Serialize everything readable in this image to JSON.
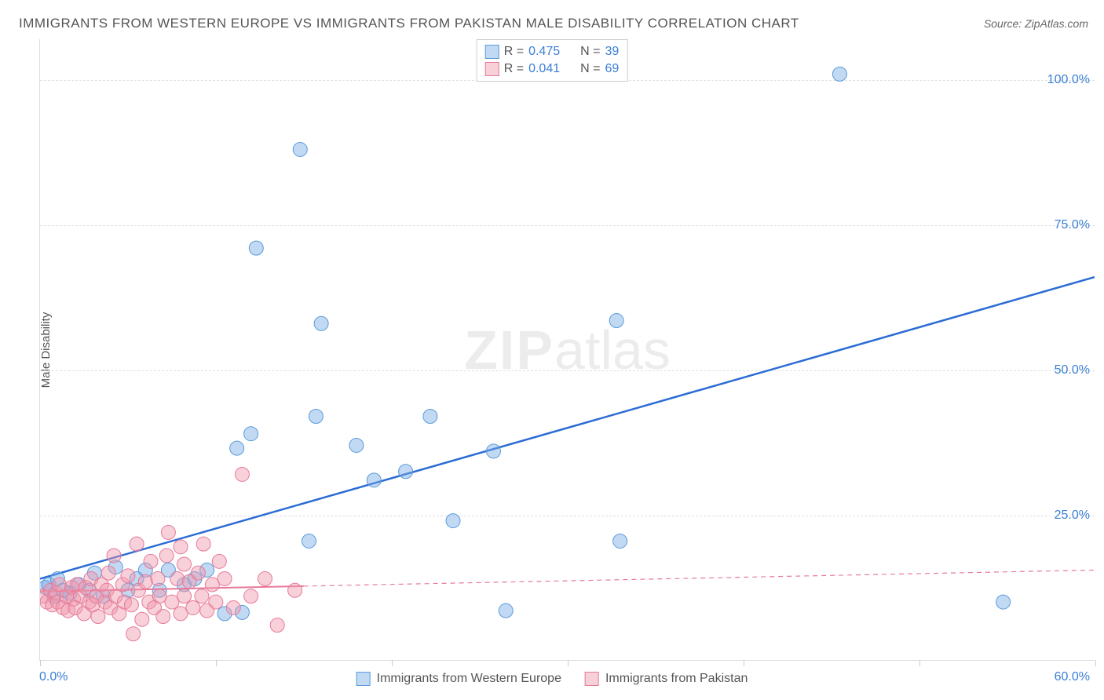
{
  "title": "IMMIGRANTS FROM WESTERN EUROPE VS IMMIGRANTS FROM PAKISTAN MALE DISABILITY CORRELATION CHART",
  "source_label": "Source: ZipAtlas.com",
  "watermark_zip": "ZIP",
  "watermark_atlas": "atlas",
  "ylabel": "Male Disability",
  "chart": {
    "type": "scatter",
    "xlim": [
      0,
      60
    ],
    "ylim": [
      0,
      107
    ],
    "x_min_label": "0.0%",
    "x_max_label": "60.0%",
    "y_ticks": [
      25,
      50,
      75,
      100
    ],
    "y_tick_labels": [
      "25.0%",
      "50.0%",
      "75.0%",
      "100.0%"
    ],
    "x_ticks": [
      0,
      10,
      20,
      30,
      40,
      50,
      60
    ],
    "background_color": "#ffffff",
    "grid_color": "#e0e0e0",
    "series": [
      {
        "name": "Immigrants from Western Europe",
        "marker_fill": "rgba(120,170,230,0.45)",
        "marker_stroke": "#5a9bd8",
        "marker_radius": 9,
        "line_color": "#2b6cd4",
        "line_width": 2.5,
        "line_dash": "none",
        "R_label": "R =",
        "R": "0.475",
        "N_label": "N =",
        "N": "39",
        "trend_start": {
          "x": 0,
          "y": 14
        },
        "trend_end": {
          "x": 60,
          "y": 66
        },
        "points": [
          {
            "x": 0.3,
            "y": 12.5
          },
          {
            "x": 0.5,
            "y": 13
          },
          {
            "x": 0.8,
            "y": 11
          },
          {
            "x": 1.0,
            "y": 14
          },
          {
            "x": 1.3,
            "y": 12
          },
          {
            "x": 1.7,
            "y": 11.5
          },
          {
            "x": 2.2,
            "y": 13
          },
          {
            "x": 2.8,
            "y": 12
          },
          {
            "x": 3.1,
            "y": 15
          },
          {
            "x": 3.6,
            "y": 11
          },
          {
            "x": 4.3,
            "y": 16
          },
          {
            "x": 5.0,
            "y": 12
          },
          {
            "x": 5.5,
            "y": 14
          },
          {
            "x": 6.0,
            "y": 15.5
          },
          {
            "x": 6.8,
            "y": 12
          },
          {
            "x": 7.3,
            "y": 15.5
          },
          {
            "x": 8.2,
            "y": 13
          },
          {
            "x": 8.8,
            "y": 14
          },
          {
            "x": 9.5,
            "y": 15.5
          },
          {
            "x": 10.5,
            "y": 8
          },
          {
            "x": 11.5,
            "y": 8.2
          },
          {
            "x": 11.2,
            "y": 36.5
          },
          {
            "x": 12.0,
            "y": 39
          },
          {
            "x": 12.3,
            "y": 71
          },
          {
            "x": 14.8,
            "y": 88
          },
          {
            "x": 15.3,
            "y": 20.5
          },
          {
            "x": 15.7,
            "y": 42
          },
          {
            "x": 16.0,
            "y": 58
          },
          {
            "x": 18.0,
            "y": 37
          },
          {
            "x": 19.0,
            "y": 31
          },
          {
            "x": 20.8,
            "y": 32.5
          },
          {
            "x": 22.2,
            "y": 42
          },
          {
            "x": 23.5,
            "y": 24
          },
          {
            "x": 25.8,
            "y": 36
          },
          {
            "x": 26.5,
            "y": 8.5
          },
          {
            "x": 32.8,
            "y": 58.5
          },
          {
            "x": 33.0,
            "y": 20.5
          },
          {
            "x": 45.5,
            "y": 101
          },
          {
            "x": 54.8,
            "y": 10
          }
        ]
      },
      {
        "name": "Immigrants from Pakistan",
        "marker_fill": "rgba(240,150,170,0.45)",
        "marker_stroke": "#e67a9a",
        "marker_radius": 9,
        "line_color": "#e67a9a",
        "line_width": 2,
        "line_dash": "dashed",
        "solid_portion_x_end": 15,
        "R_label": "R =",
        "R": "0.041",
        "N_label": "N =",
        "N": "69",
        "trend_start": {
          "x": 0,
          "y": 11.8
        },
        "trend_end": {
          "x": 60,
          "y": 15.5
        },
        "points": [
          {
            "x": 0.2,
            "y": 11
          },
          {
            "x": 0.4,
            "y": 10
          },
          {
            "x": 0.6,
            "y": 12
          },
          {
            "x": 0.7,
            "y": 9.5
          },
          {
            "x": 0.9,
            "y": 11.5
          },
          {
            "x": 1.0,
            "y": 10
          },
          {
            "x": 1.1,
            "y": 13
          },
          {
            "x": 1.3,
            "y": 9
          },
          {
            "x": 1.5,
            "y": 11
          },
          {
            "x": 1.6,
            "y": 8.5
          },
          {
            "x": 1.8,
            "y": 12.5
          },
          {
            "x": 1.9,
            "y": 10.5
          },
          {
            "x": 2.0,
            "y": 9
          },
          {
            "x": 2.1,
            "y": 13
          },
          {
            "x": 2.3,
            "y": 11
          },
          {
            "x": 2.5,
            "y": 8
          },
          {
            "x": 2.6,
            "y": 12.5
          },
          {
            "x": 2.8,
            "y": 10
          },
          {
            "x": 2.9,
            "y": 14
          },
          {
            "x": 3.0,
            "y": 9.5
          },
          {
            "x": 3.2,
            "y": 11
          },
          {
            "x": 3.3,
            "y": 7.5
          },
          {
            "x": 3.5,
            "y": 13
          },
          {
            "x": 3.7,
            "y": 10
          },
          {
            "x": 3.8,
            "y": 12
          },
          {
            "x": 3.9,
            "y": 15
          },
          {
            "x": 4.0,
            "y": 9
          },
          {
            "x": 4.2,
            "y": 18
          },
          {
            "x": 4.3,
            "y": 11
          },
          {
            "x": 4.5,
            "y": 8
          },
          {
            "x": 4.7,
            "y": 13
          },
          {
            "x": 4.8,
            "y": 10
          },
          {
            "x": 5.0,
            "y": 14.5
          },
          {
            "x": 5.2,
            "y": 9.5
          },
          {
            "x": 5.3,
            "y": 4.5
          },
          {
            "x": 5.5,
            "y": 20
          },
          {
            "x": 5.6,
            "y": 12
          },
          {
            "x": 5.8,
            "y": 7
          },
          {
            "x": 6.0,
            "y": 13.5
          },
          {
            "x": 6.2,
            "y": 10
          },
          {
            "x": 6.3,
            "y": 17
          },
          {
            "x": 6.5,
            "y": 9
          },
          {
            "x": 6.7,
            "y": 14
          },
          {
            "x": 6.8,
            "y": 11
          },
          {
            "x": 7.0,
            "y": 7.5
          },
          {
            "x": 7.2,
            "y": 18
          },
          {
            "x": 7.3,
            "y": 22
          },
          {
            "x": 7.5,
            "y": 10
          },
          {
            "x": 7.8,
            "y": 14
          },
          {
            "x": 8.0,
            "y": 8
          },
          {
            "x": 8.0,
            "y": 19.5
          },
          {
            "x": 8.2,
            "y": 11
          },
          {
            "x": 8.2,
            "y": 16.5
          },
          {
            "x": 8.5,
            "y": 13.5
          },
          {
            "x": 8.7,
            "y": 9
          },
          {
            "x": 9.0,
            "y": 15
          },
          {
            "x": 9.2,
            "y": 11
          },
          {
            "x": 9.3,
            "y": 20
          },
          {
            "x": 9.5,
            "y": 8.5
          },
          {
            "x": 9.8,
            "y": 13
          },
          {
            "x": 10.0,
            "y": 10
          },
          {
            "x": 10.2,
            "y": 17
          },
          {
            "x": 10.5,
            "y": 14
          },
          {
            "x": 11.0,
            "y": 9
          },
          {
            "x": 11.5,
            "y": 32
          },
          {
            "x": 12.0,
            "y": 11
          },
          {
            "x": 12.8,
            "y": 14
          },
          {
            "x": 13.5,
            "y": 6
          },
          {
            "x": 14.5,
            "y": 12
          }
        ]
      }
    ]
  }
}
